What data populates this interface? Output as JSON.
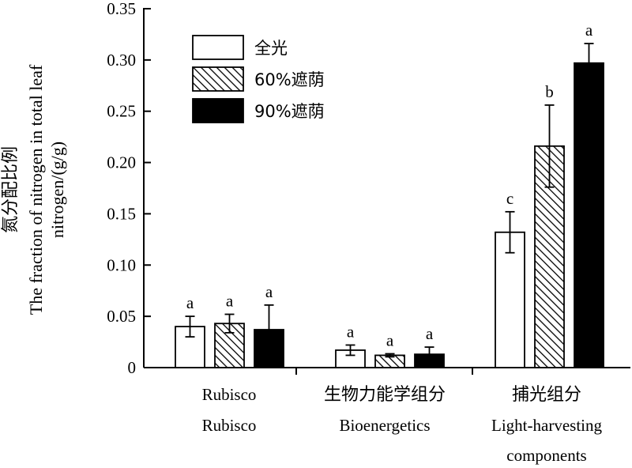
{
  "chart_data": {
    "type": "bar",
    "ylabel_zh": "氮分配比例",
    "ylabel_en_line1": "The fraction of nitrogen in total leaf",
    "ylabel_en_line2": "nitrogen/(g/g)",
    "ylim": [
      0,
      0.35
    ],
    "yticks": [
      "0",
      "0.05",
      "0.10",
      "0.15",
      "0.20",
      "0.25",
      "0.30",
      "0.35"
    ],
    "yticks_values": [
      0,
      0.05,
      0.1,
      0.15,
      0.2,
      0.25,
      0.3,
      0.35
    ],
    "legend_position": "top-left",
    "categories": [
      {
        "label_top": "Rubisco",
        "label_bottom": "Rubisco",
        "label_bottom2": ""
      },
      {
        "label_top": "生物力能学组分",
        "label_bottom": "Bioenergetics",
        "label_bottom2": ""
      },
      {
        "label_top": "捕光组分",
        "label_bottom": "Light-harvesting",
        "label_bottom2": "components"
      }
    ],
    "series": [
      {
        "name": "全光",
        "fill": "white",
        "values": [
          0.04,
          0.017,
          0.132
        ],
        "errors": [
          0.01,
          0.005,
          0.02
        ],
        "sig": [
          "a",
          "a",
          "c"
        ]
      },
      {
        "name": "60%遮荫",
        "fill": "hatch",
        "values": [
          0.043,
          0.012,
          0.216
        ],
        "errors": [
          0.009,
          0.0015,
          0.04
        ],
        "sig": [
          "a",
          "a",
          "b"
        ]
      },
      {
        "name": "90%遮荫",
        "fill": "black",
        "values": [
          0.037,
          0.013,
          0.297
        ],
        "errors": [
          0.024,
          0.007,
          0.019
        ],
        "sig": [
          "a",
          "a",
          "a"
        ]
      }
    ]
  },
  "colors": {
    "ink": "#000000",
    "white": "#ffffff"
  }
}
